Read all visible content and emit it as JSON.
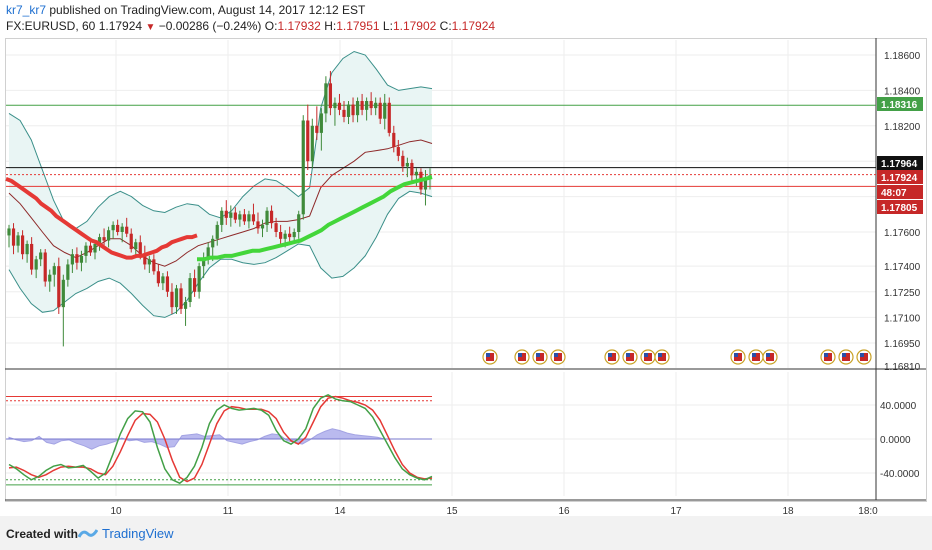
{
  "header": {
    "user": "kr7_kr7",
    "published": " published on TradingView.com, August 14, 2017 12:12 EST",
    "symbol": "FX:EURUSD, 60",
    "last": "1.17924",
    "change": "−0.00286 (−0.24%)",
    "o_label": "O:",
    "o_value": "1.17932",
    "h_label": "H:",
    "h_value": "1.17951",
    "l_label": "L:",
    "l_value": "1.17902",
    "c_label": "C:",
    "c_value": "1.17924"
  },
  "footer": {
    "created_with": "Created with",
    "brand": "TradingView"
  },
  "colors": {
    "up": "#3f8a3a",
    "down": "#c62828",
    "sma_fast": "#e53935",
    "sma_slow": "#43d63a",
    "bb": "#3a8f89",
    "bb_fill": "#e9f5f4",
    "stoch_k": "#43a047",
    "stoch_d": "#e53935",
    "hist": "#b3b3ee"
  },
  "chart_data": [
    {
      "type": "candlestick",
      "title": "",
      "y_ticks": [
        "1.18600",
        "1.18400",
        "1.18200",
        "1.17600",
        "1.17400",
        "1.17250",
        "1.17100",
        "1.16950",
        "1.16810"
      ],
      "price_tags": [
        {
          "text": "1.18316",
          "price": 1.18316,
          "color": "#43a047"
        },
        {
          "text": "1.17964",
          "price": 1.17964,
          "color": "#111111"
        },
        {
          "text": "1.17924",
          "price": 1.17924,
          "color": "#c62828"
        },
        {
          "text": "48:07",
          "price": 1.17858,
          "color": "#c62828"
        },
        {
          "text": "1.17805",
          "price": 1.17805,
          "color": "#c62828"
        }
      ],
      "x_ticks": [
        "10",
        "11",
        "14",
        "15",
        "16",
        "17",
        "18",
        "18:0"
      ],
      "horizontal_lines": [
        {
          "price": 1.18316,
          "color": "#43a047",
          "style": "solid"
        },
        {
          "price": 1.17964,
          "color": "#111111",
          "style": "solid"
        },
        {
          "price": 1.17924,
          "color": "#e53935",
          "style": "dotted"
        },
        {
          "price": 1.17858,
          "color": "#e53935",
          "style": "solid"
        }
      ],
      "candles": [
        [
          1.1758,
          1.1764,
          1.1751,
          1.1762
        ],
        [
          1.1762,
          1.1765,
          1.1747,
          1.1752
        ],
        [
          1.1752,
          1.176,
          1.1748,
          1.1758
        ],
        [
          1.1758,
          1.1761,
          1.1744,
          1.1747
        ],
        [
          1.1747,
          1.1755,
          1.1742,
          1.1753
        ],
        [
          1.1753,
          1.1757,
          1.1735,
          1.1738
        ],
        [
          1.1738,
          1.1746,
          1.1733,
          1.1744
        ],
        [
          1.1744,
          1.175,
          1.174,
          1.1748
        ],
        [
          1.1748,
          1.175,
          1.1728,
          1.1731
        ],
        [
          1.1731,
          1.1738,
          1.1725,
          1.1735
        ],
        [
          1.1735,
          1.1742,
          1.1728,
          1.174
        ],
        [
          1.174,
          1.1745,
          1.1712,
          1.1716
        ],
        [
          1.1716,
          1.1735,
          1.1693,
          1.1732
        ],
        [
          1.1732,
          1.1744,
          1.1728,
          1.1741
        ],
        [
          1.1741,
          1.175,
          1.1736,
          1.1747
        ],
        [
          1.1747,
          1.1751,
          1.1738,
          1.1742
        ],
        [
          1.1742,
          1.1749,
          1.1737,
          1.1746
        ],
        [
          1.1746,
          1.1754,
          1.1742,
          1.1752
        ],
        [
          1.1752,
          1.1756,
          1.1746,
          1.1748
        ],
        [
          1.1748,
          1.1755,
          1.1744,
          1.1753
        ],
        [
          1.1753,
          1.1759,
          1.1749,
          1.1757
        ],
        [
          1.1757,
          1.1762,
          1.1752,
          1.1755
        ],
        [
          1.1755,
          1.1763,
          1.1751,
          1.1761
        ],
        [
          1.1761,
          1.1766,
          1.1756,
          1.1764
        ],
        [
          1.1764,
          1.1767,
          1.1758,
          1.176
        ],
        [
          1.176,
          1.1765,
          1.1754,
          1.1763
        ],
        [
          1.1763,
          1.1768,
          1.1757,
          1.1759
        ],
        [
          1.1759,
          1.1762,
          1.1748,
          1.175
        ],
        [
          1.175,
          1.1756,
          1.1745,
          1.1754
        ],
        [
          1.1754,
          1.1758,
          1.1744,
          1.1746
        ],
        [
          1.1746,
          1.1752,
          1.1738,
          1.1741
        ],
        [
          1.1741,
          1.1746,
          1.1736,
          1.1744
        ],
        [
          1.1744,
          1.1747,
          1.1735,
          1.1737
        ],
        [
          1.1737,
          1.1741,
          1.1728,
          1.173
        ],
        [
          1.173,
          1.1736,
          1.1726,
          1.1734
        ],
        [
          1.1734,
          1.1737,
          1.1722,
          1.1725
        ],
        [
          1.1725,
          1.173,
          1.1712,
          1.1716
        ],
        [
          1.1716,
          1.1729,
          1.1712,
          1.1727
        ],
        [
          1.1727,
          1.173,
          1.1712,
          1.1715
        ],
        [
          1.1715,
          1.1722,
          1.1705,
          1.1719
        ],
        [
          1.1719,
          1.1736,
          1.1716,
          1.1733
        ],
        [
          1.1733,
          1.1738,
          1.1722,
          1.1725
        ],
        [
          1.1725,
          1.1742,
          1.1721,
          1.174
        ],
        [
          1.174,
          1.1748,
          1.1733,
          1.1745
        ],
        [
          1.1745,
          1.1754,
          1.1741,
          1.1751
        ],
        [
          1.1751,
          1.1758,
          1.1743,
          1.1756
        ],
        [
          1.1756,
          1.1766,
          1.1752,
          1.1764
        ],
        [
          1.1764,
          1.1774,
          1.176,
          1.1772
        ],
        [
          1.1772,
          1.1778,
          1.1764,
          1.1768
        ],
        [
          1.1768,
          1.1775,
          1.1763,
          1.1771
        ],
        [
          1.1771,
          1.1774,
          1.1765,
          1.1767
        ],
        [
          1.1767,
          1.1772,
          1.1763,
          1.177
        ],
        [
          1.177,
          1.1773,
          1.1764,
          1.1766
        ],
        [
          1.1766,
          1.1772,
          1.1762,
          1.177
        ],
        [
          1.177,
          1.1776,
          1.1764,
          1.1766
        ],
        [
          1.1766,
          1.1771,
          1.1759,
          1.1762
        ],
        [
          1.1762,
          1.1767,
          1.1757,
          1.1764
        ],
        [
          1.1764,
          1.1774,
          1.176,
          1.1772
        ],
        [
          1.1772,
          1.1775,
          1.1762,
          1.1765
        ],
        [
          1.1765,
          1.1768,
          1.1757,
          1.176
        ],
        [
          1.176,
          1.1764,
          1.1753,
          1.1756
        ],
        [
          1.1756,
          1.1761,
          1.1751,
          1.1759
        ],
        [
          1.1759,
          1.1763,
          1.1754,
          1.1757
        ],
        [
          1.1757,
          1.1762,
          1.1753,
          1.176
        ],
        [
          1.176,
          1.1772,
          1.1756,
          1.177
        ],
        [
          1.177,
          1.1826,
          1.1767,
          1.1823
        ],
        [
          1.1823,
          1.1832,
          1.1795,
          1.18
        ],
        [
          1.18,
          1.1824,
          1.1796,
          1.182
        ],
        [
          1.182,
          1.1831,
          1.1812,
          1.1816
        ],
        [
          1.1816,
          1.183,
          1.1806,
          1.1827
        ],
        [
          1.1827,
          1.1848,
          1.1822,
          1.1844
        ],
        [
          1.1844,
          1.1851,
          1.1826,
          1.183
        ],
        [
          1.183,
          1.1836,
          1.182,
          1.1833
        ],
        [
          1.1833,
          1.1838,
          1.1826,
          1.1829
        ],
        [
          1.1829,
          1.1834,
          1.1822,
          1.1825
        ],
        [
          1.1825,
          1.1834,
          1.1821,
          1.1832
        ],
        [
          1.1832,
          1.1836,
          1.1822,
          1.1826
        ],
        [
          1.1826,
          1.1836,
          1.1822,
          1.1834
        ],
        [
          1.1834,
          1.1838,
          1.1826,
          1.1829
        ],
        [
          1.1829,
          1.1836,
          1.1823,
          1.1834
        ],
        [
          1.1834,
          1.1839,
          1.1826,
          1.183
        ],
        [
          1.183,
          1.1836,
          1.1826,
          1.1833
        ],
        [
          1.1833,
          1.1836,
          1.1821,
          1.1824
        ],
        [
          1.1824,
          1.1838,
          1.1818,
          1.1833
        ],
        [
          1.1833,
          1.1836,
          1.1814,
          1.1816
        ],
        [
          1.1816,
          1.182,
          1.1805,
          1.1808
        ],
        [
          1.1808,
          1.1812,
          1.18,
          1.1803
        ],
        [
          1.1803,
          1.1806,
          1.1794,
          1.1797
        ],
        [
          1.1797,
          1.1802,
          1.1791,
          1.1799
        ],
        [
          1.1799,
          1.1801,
          1.1788,
          1.1792
        ],
        [
          1.1792,
          1.1796,
          1.1786,
          1.1794
        ],
        [
          1.1794,
          1.1796,
          1.1781,
          1.1784
        ],
        [
          1.1784,
          1.1795,
          1.1775,
          1.179
        ],
        [
          1.179,
          1.1796,
          1.1784,
          1.1792
        ]
      ],
      "sma_fast": [
        1.179,
        1.1789,
        1.1787,
        1.1785,
        1.1783,
        1.1781,
        1.1779,
        1.1776,
        1.1774,
        1.1772,
        1.1769,
        1.1767,
        1.1765,
        1.1763,
        1.1761,
        1.1759,
        1.1757,
        1.1755,
        1.1754,
        1.1752,
        1.175,
        1.1748,
        1.1747,
        1.1746,
        1.1745,
        1.1745,
        1.1746,
        1.1746,
        1.1747,
        1.1748,
        1.1749,
        1.1751,
        1.1752,
        1.1754,
        1.1755,
        1.1756,
        1.1757,
        1.1757,
        1.1758
      ],
      "sma_slow": [
        1.1744,
        1.1744,
        1.1745,
        1.1745,
        1.1746,
        1.1746,
        1.1747,
        1.1748,
        1.1749,
        1.1749,
        1.175,
        1.1751,
        1.1752,
        1.1753,
        1.1754,
        1.1755,
        1.1757,
        1.1759,
        1.1761,
        1.1764,
        1.1766,
        1.1768,
        1.177,
        1.1772,
        1.1774,
        1.1776,
        1.1778,
        1.178,
        1.1783,
        1.1785,
        1.1787,
        1.1788,
        1.1789,
        1.179,
        1.1791
      ],
      "bb_upper": [
        1.1827,
        1.1823,
        1.1812,
        1.1795,
        1.1778,
        1.1765,
        1.1762,
        1.1766,
        1.1774,
        1.178,
        1.1783,
        1.178,
        1.1775,
        1.1772,
        1.1771,
        1.1774,
        1.1776,
        1.1775,
        1.177,
        1.1768,
        1.1772,
        1.178,
        1.1786,
        1.179,
        1.1789,
        1.1785,
        1.178,
        1.1785,
        1.183,
        1.185,
        1.1858,
        1.1862,
        1.186,
        1.1852,
        1.1843,
        1.184,
        1.1841,
        1.1842,
        1.1841
      ],
      "bb_lower": [
        1.1738,
        1.1727,
        1.1718,
        1.1713,
        1.1714,
        1.1719,
        1.1724,
        1.1727,
        1.1731,
        1.1733,
        1.173,
        1.1724,
        1.1717,
        1.1711,
        1.171,
        1.1713,
        1.172,
        1.173,
        1.1739,
        1.1744,
        1.1744,
        1.1742,
        1.1741,
        1.1742,
        1.1745,
        1.1749,
        1.1753,
        1.1752,
        1.1739,
        1.1733,
        1.1734,
        1.1739,
        1.1746,
        1.1757,
        1.177,
        1.1779,
        1.1783,
        1.1782,
        1.178
      ],
      "bb_middle": [
        1.1782,
        1.1776,
        1.1768,
        1.176,
        1.1752,
        1.1748,
        1.1745,
        1.1748,
        1.1752,
        1.1756,
        1.1756,
        1.1752,
        1.1746,
        1.1742,
        1.174,
        1.1743,
        1.1748,
        1.1752,
        1.1754,
        1.1756,
        1.1758,
        1.176,
        1.1762,
        1.1765,
        1.1766,
        1.1766,
        1.1767,
        1.1769,
        1.1785,
        1.1792,
        1.1796,
        1.18,
        1.1805,
        1.1806,
        1.1807,
        1.1809,
        1.1811,
        1.1812,
        1.181
      ]
    },
    {
      "type": "line",
      "title": "",
      "y_ticks": [
        "40.0000",
        "0.0000",
        "-40.0000"
      ],
      "ylim": [
        -55,
        60
      ],
      "reference_lines": [
        {
          "value": 50,
          "color": "#e53935",
          "style": "solid"
        },
        {
          "value": 45,
          "color": "#e53935",
          "style": "dotted"
        },
        {
          "value": -48,
          "color": "#43a047",
          "style": "dotted"
        },
        {
          "value": -54,
          "color": "#43a047",
          "style": "solid"
        }
      ],
      "stoch_k": [
        -30,
        -35,
        -42,
        -48,
        -44,
        -37,
        -32,
        -30,
        -34,
        -33,
        -31,
        -38,
        -46,
        -40,
        -18,
        6,
        24,
        33,
        32,
        20,
        -10,
        -35,
        -48,
        -52,
        -45,
        -32,
        -10,
        18,
        34,
        40,
        36,
        34,
        35,
        36,
        34,
        28,
        10,
        -2,
        -6,
        0,
        12,
        36,
        48,
        52,
        47,
        45,
        44,
        40,
        36,
        26,
        10,
        -6,
        -22,
        -35,
        -42,
        -46,
        -48,
        -44
      ],
      "stoch_d": [
        -34,
        -33,
        -37,
        -42,
        -45,
        -42,
        -37,
        -33,
        -32,
        -33,
        -33,
        -35,
        -40,
        -42,
        -32,
        -15,
        4,
        22,
        30,
        29,
        20,
        0,
        -25,
        -45,
        -50,
        -46,
        -30,
        -6,
        18,
        33,
        38,
        37,
        35,
        35,
        35,
        32,
        24,
        8,
        -2,
        -6,
        2,
        20,
        38,
        48,
        50,
        48,
        45,
        43,
        40,
        34,
        22,
        4,
        -14,
        -30,
        -40,
        -45,
        -47,
        -46
      ],
      "histogram": [
        2,
        -1,
        -3,
        -2,
        3,
        -4,
        -6,
        -2,
        -1,
        -5,
        -8,
        -12,
        -8,
        -6,
        -3,
        1,
        -2,
        -1,
        -4,
        -3,
        -6,
        -10,
        -9,
        4,
        5,
        6,
        3,
        4,
        5,
        -2,
        -4,
        -6,
        -3,
        -1,
        3,
        6,
        5,
        -2,
        -4,
        -6,
        -1,
        5,
        9,
        12,
        10,
        7,
        5,
        4,
        3,
        2,
        0,
        0,
        0,
        0,
        0,
        0,
        0
      ]
    }
  ]
}
